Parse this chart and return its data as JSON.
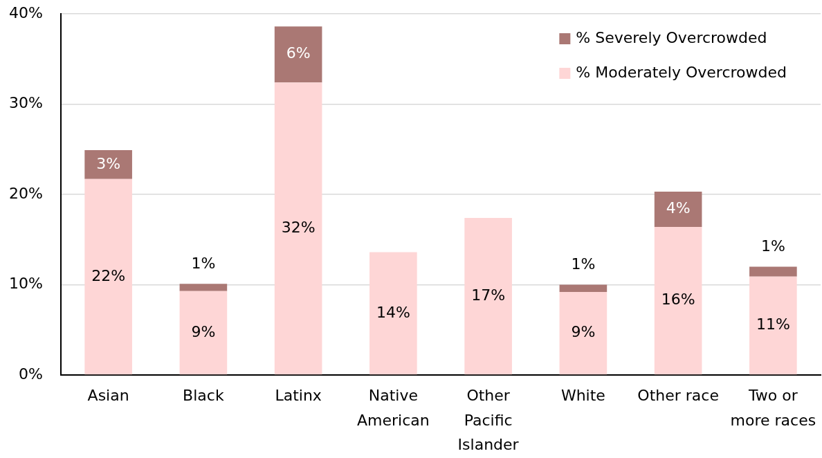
{
  "chart_data": {
    "type": "bar",
    "stacked": true,
    "categories": [
      "Asian",
      "Black",
      "Latinx",
      "Native American",
      "Other Pacific Islander",
      "White",
      "Other race",
      "Two or more races"
    ],
    "series": [
      {
        "name": "% Moderately Overcrowded",
        "color": "#fed6d6",
        "values": [
          21.7,
          9.3,
          32.4,
          13.6,
          17.4,
          9.2,
          16.4,
          10.9
        ],
        "value_labels": [
          "22%",
          "9%",
          "32%",
          "14%",
          "17%",
          "9%",
          "16%",
          "11%"
        ]
      },
      {
        "name": "% Severely Overcrowded",
        "color": "#aa7874",
        "values": [
          3.2,
          0.8,
          6.2,
          null,
          null,
          0.8,
          3.9,
          1.1
        ],
        "value_labels": [
          "3%",
          "1%",
          "6%",
          null,
          null,
          "1%",
          "4%",
          "1%"
        ]
      }
    ],
    "ylim": [
      0,
      40
    ],
    "yticks": [
      {
        "value": 0,
        "label": "0%"
      },
      {
        "value": 10,
        "label": "10%"
      },
      {
        "value": 20,
        "label": "20%"
      },
      {
        "value": 30,
        "label": "30%"
      },
      {
        "value": 40,
        "label": "40%"
      }
    ],
    "grid": "y",
    "legend": "top right"
  }
}
